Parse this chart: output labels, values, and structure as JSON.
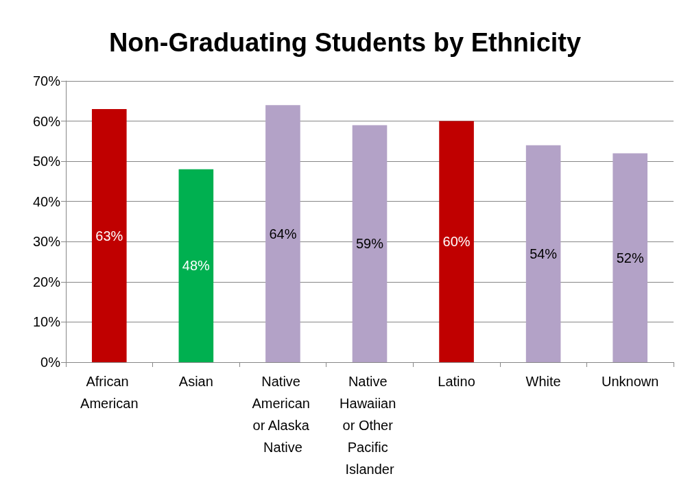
{
  "chart_data": {
    "type": "bar",
    "title": "Non-Graduating Students by Ethnicity",
    "categories": [
      "African American",
      "Asian",
      "Native American or Alaska Native",
      "Native Hawaiian or Other Pacific Islander",
      "Latino",
      "White",
      "Unknown"
    ],
    "values": [
      63,
      48,
      64,
      59,
      60,
      54,
      52
    ],
    "colors": [
      "#c00000",
      "#00b050",
      "#b3a2c7",
      "#b3a2c7",
      "#c00000",
      "#b3a2c7",
      "#b3a2c7"
    ],
    "value_labels": [
      "63%",
      "48%",
      "64%",
      "59%",
      "60%",
      "54%",
      "52%"
    ],
    "ylim": [
      0,
      70
    ],
    "yticks": [
      {
        "value": 0,
        "label": "0%"
      },
      {
        "value": 10,
        "label": "10%"
      },
      {
        "value": 20,
        "label": "20%"
      },
      {
        "value": 30,
        "label": "30%"
      },
      {
        "value": 40,
        "label": "40%"
      },
      {
        "value": 50,
        "label": "50%"
      },
      {
        "value": 60,
        "label": "60%"
      },
      {
        "value": 70,
        "label": "70%"
      }
    ],
    "grid": "y"
  }
}
